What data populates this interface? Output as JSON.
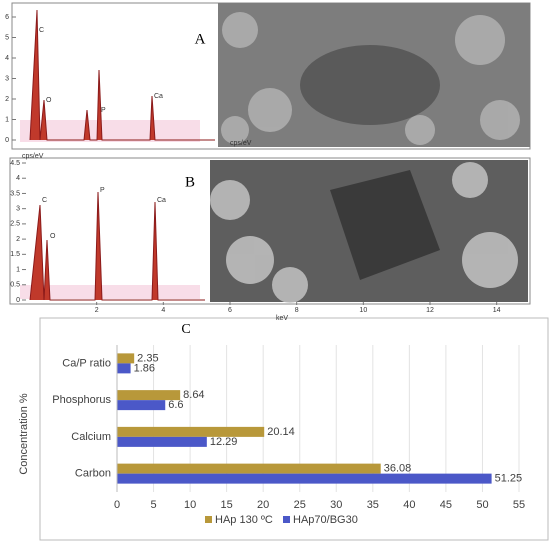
{
  "panels": [
    {
      "label": "A",
      "unit": "cps/eV",
      "ylim": [
        0,
        6.5
      ],
      "yticks": [
        0,
        1,
        2,
        3,
        4,
        5,
        6
      ],
      "peaks": [
        "C",
        "O",
        "P",
        "Ca"
      ]
    },
    {
      "label": "B",
      "unit": "cps/eV",
      "xlabel": "keV",
      "ylim": [
        0,
        4.75
      ],
      "yticks": [
        0,
        0.5,
        1,
        1.5,
        2,
        2.5,
        3,
        3.5,
        4,
        4.5
      ],
      "xlim": [
        0,
        15
      ],
      "xticks": [
        2,
        4,
        6,
        8,
        10,
        12,
        14
      ],
      "peaks": [
        "C",
        "O",
        "P",
        "Ca"
      ]
    }
  ],
  "chart_data": {
    "type": "hbar",
    "label": "C",
    "ylabel": "Concentration %",
    "categories": [
      "Carbon",
      "Calcium",
      "Phosphorus",
      "Ca/P ratio"
    ],
    "series": [
      {
        "name": "HAp 130 ºC",
        "color": "#b8983a",
        "values": [
          36.08,
          20.14,
          8.64,
          2.35
        ]
      },
      {
        "name": "HAp70/BG30",
        "color": "#4b58c8",
        "values": [
          51.25,
          12.29,
          6.6,
          1.86
        ]
      }
    ],
    "xlim": [
      0,
      55
    ],
    "xticks": [
      0,
      5,
      10,
      15,
      20,
      25,
      30,
      35,
      40,
      45,
      50,
      55
    ],
    "grid": true,
    "legend": "bottom"
  }
}
